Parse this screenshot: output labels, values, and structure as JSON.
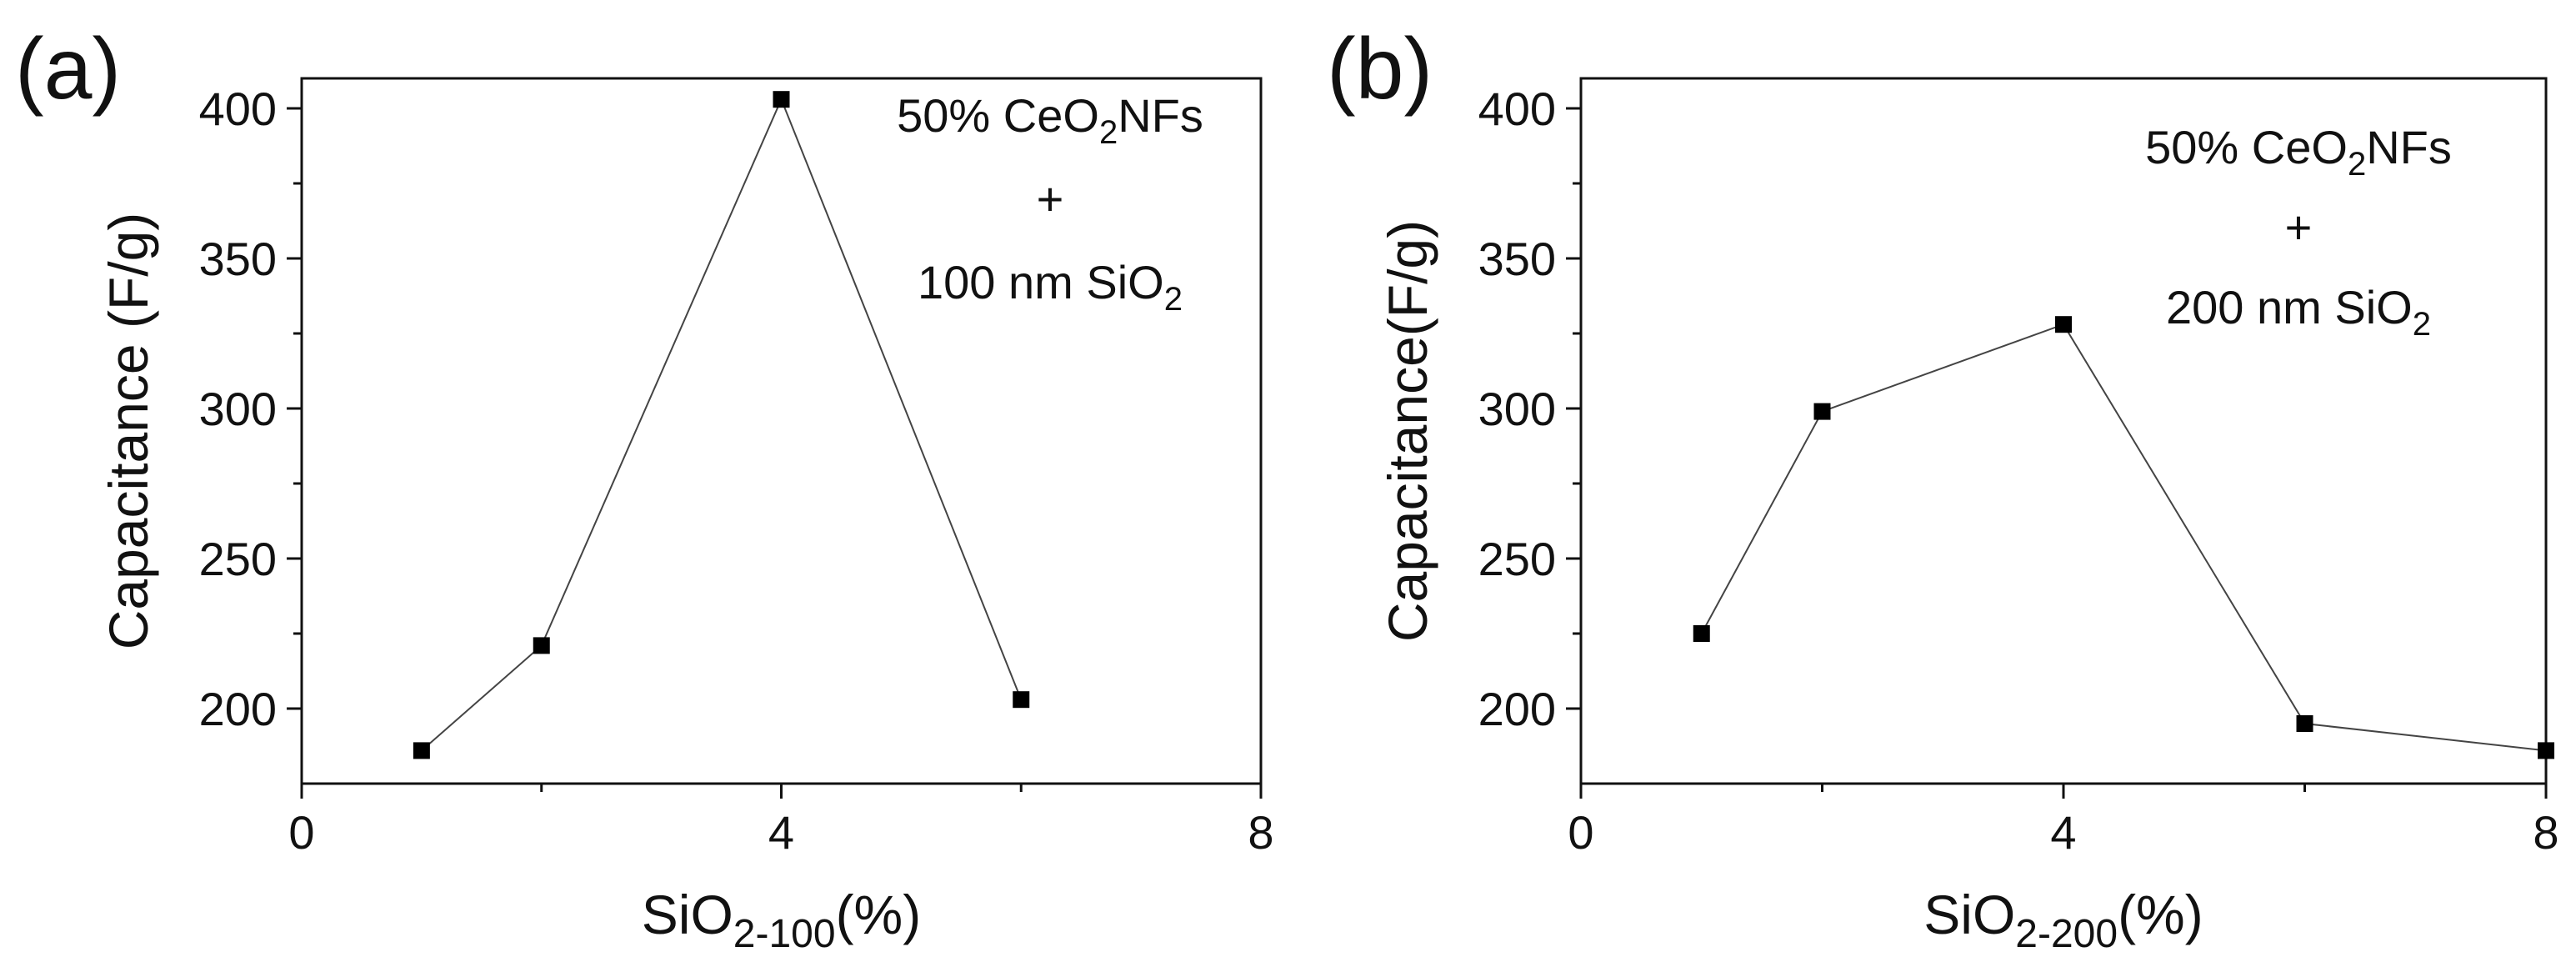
{
  "chart_data": [
    {
      "type": "scatter",
      "panel_label": "(a)",
      "xlabel": {
        "main": "SiO",
        "sub": "2-100",
        "tail": "(%)"
      },
      "ylabel": "Capacitance (F/g)",
      "xlim": [
        0,
        8
      ],
      "ylim": [
        175,
        410
      ],
      "x_ticks": [
        0,
        4,
        8
      ],
      "x_tick_labels": [
        "0",
        "4",
        "8"
      ],
      "x_minor_ticks": [
        2,
        6
      ],
      "y_ticks": [
        200,
        250,
        300,
        350,
        400
      ],
      "y_tick_labels": [
        "200",
        "250",
        "300",
        "350",
        "400"
      ],
      "annotation": {
        "line1": "50% CeO",
        "line1_sub": "2",
        "line1_tail": "NFs",
        "line2": "+",
        "line3": "100 nm SiO",
        "line3_sub": "2"
      },
      "series": [
        {
          "name": "50% CeO2NFs + 100 nm SiO2",
          "x": [
            1,
            2,
            4,
            6
          ],
          "y": [
            186,
            221,
            403,
            203
          ]
        }
      ]
    },
    {
      "type": "scatter",
      "panel_label": "(b)",
      "xlabel": {
        "main": "SiO",
        "sub": "2-200",
        "tail": "(%)"
      },
      "ylabel": "Capacitance(F/g)",
      "xlim": [
        0,
        8
      ],
      "ylim": [
        175,
        410
      ],
      "x_ticks": [
        0,
        4,
        8
      ],
      "x_tick_labels": [
        "0",
        "4",
        "8"
      ],
      "x_minor_ticks": [
        2,
        6
      ],
      "y_ticks": [
        200,
        250,
        300,
        350,
        400
      ],
      "y_tick_labels": [
        "200",
        "250",
        "300",
        "350",
        "400"
      ],
      "annotation": {
        "line1": "50% CeO",
        "line1_sub": "2",
        "line1_tail": "NFs",
        "line2": "+",
        "line3": "200 nm SiO",
        "line3_sub": "2"
      },
      "series": [
        {
          "name": "50% CeO2NFs + 200 nm SiO2",
          "x": [
            1,
            2,
            4,
            6,
            8
          ],
          "y": [
            225,
            299,
            328,
            195,
            186
          ]
        }
      ]
    }
  ]
}
